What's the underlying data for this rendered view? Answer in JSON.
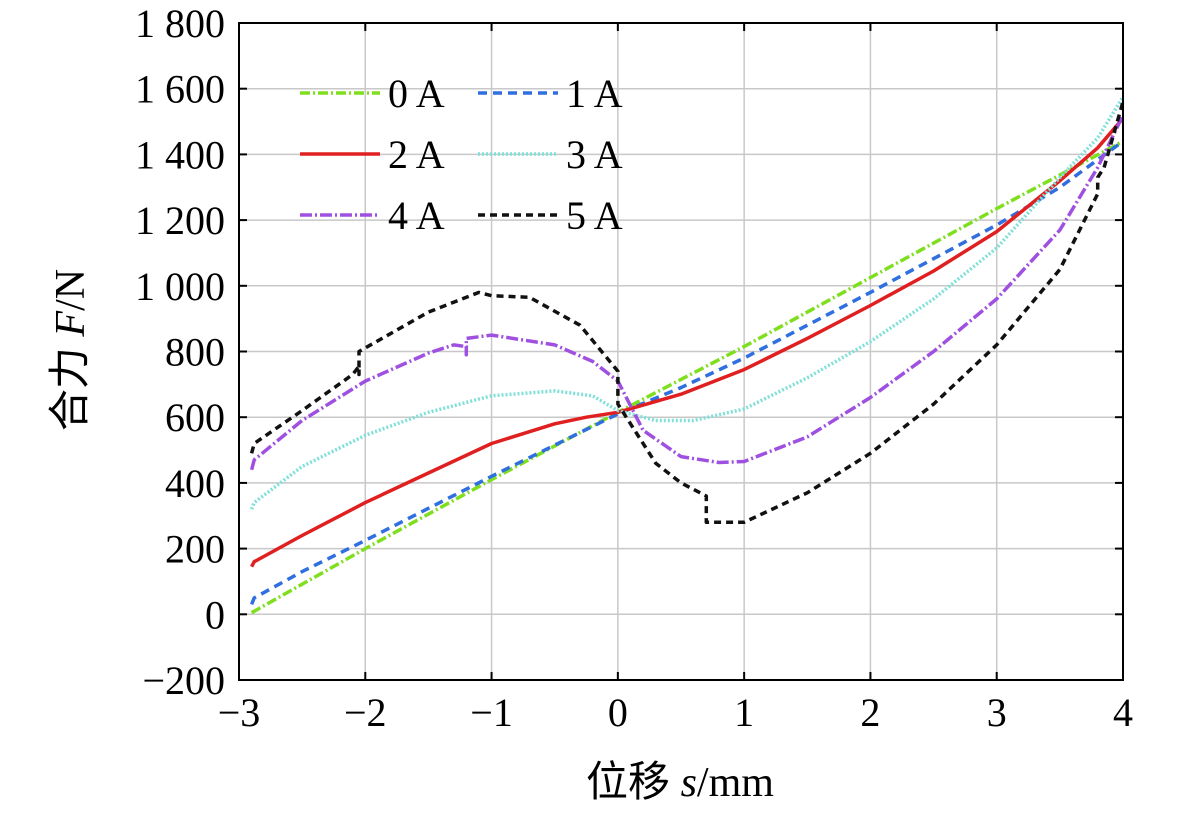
{
  "chart_data": {
    "type": "line",
    "title": "",
    "xlabel": {
      "prefix": "位移 ",
      "var": "s",
      "unit": "/mm"
    },
    "ylabel": {
      "prefix": "合力 ",
      "var": "F",
      "unit": "/N"
    },
    "xlim": [
      -3,
      4
    ],
    "ylim": [
      -200,
      1800
    ],
    "x_start": -2.9,
    "grid": true,
    "legend_position": "top-left",
    "x_ticks": [
      {
        "v": -3,
        "label": "−3"
      },
      {
        "v": -2,
        "label": "−2"
      },
      {
        "v": -1,
        "label": "−1"
      },
      {
        "v": 0,
        "label": "0"
      },
      {
        "v": 1,
        "label": "1"
      },
      {
        "v": 2,
        "label": "2"
      },
      {
        "v": 3,
        "label": "3"
      },
      {
        "v": 4,
        "label": "4"
      }
    ],
    "y_ticks": [
      {
        "v": -200,
        "label": "−200"
      },
      {
        "v": 0,
        "label": "0"
      },
      {
        "v": 200,
        "label": "200"
      },
      {
        "v": 400,
        "label": "400"
      },
      {
        "v": 600,
        "label": "600"
      },
      {
        "v": 800,
        "label": "800"
      },
      {
        "v": 1000,
        "label": "1 000"
      },
      {
        "v": 1200,
        "label": "1 200"
      },
      {
        "v": 1400,
        "label": "1 400"
      },
      {
        "v": 1600,
        "label": "1 600"
      },
      {
        "v": 1800,
        "label": "1 800"
      }
    ],
    "series": [
      {
        "name": "0 A",
        "color": "#7fdf1f",
        "dash": "10,3,2,3",
        "points": [
          [
            -2.9,
            5
          ],
          [
            -2,
            200
          ],
          [
            -1,
            410
          ],
          [
            0,
            615
          ],
          [
            1,
            815
          ],
          [
            2,
            1025
          ],
          [
            3,
            1235
          ],
          [
            4,
            1440
          ]
        ]
      },
      {
        "name": "1 A",
        "color": "#2f6fe0",
        "dash": "9,6",
        "points": [
          [
            -2.9,
            30
          ],
          [
            -2.88,
            50
          ],
          [
            -2.5,
            130
          ],
          [
            -2,
            225
          ],
          [
            -1,
            420
          ],
          [
            0,
            610
          ],
          [
            0.5,
            690
          ],
          [
            1,
            780
          ],
          [
            2,
            980
          ],
          [
            3,
            1185
          ],
          [
            3.5,
            1300
          ],
          [
            4,
            1440
          ]
        ]
      },
      {
        "name": "2 A",
        "color": "#e02020",
        "dash": "",
        "points": [
          [
            -2.9,
            145
          ],
          [
            -2.88,
            160
          ],
          [
            -2.5,
            240
          ],
          [
            -2,
            340
          ],
          [
            -1.5,
            430
          ],
          [
            -1,
            520
          ],
          [
            -0.5,
            580
          ],
          [
            -0.25,
            600
          ],
          [
            0,
            615
          ],
          [
            0.5,
            670
          ],
          [
            1,
            745
          ],
          [
            1.5,
            840
          ],
          [
            2,
            940
          ],
          [
            2.5,
            1045
          ],
          [
            3,
            1165
          ],
          [
            3.5,
            1320
          ],
          [
            3.8,
            1420
          ],
          [
            4,
            1510
          ]
        ]
      },
      {
        "name": "3 A",
        "color": "#7fe0d8",
        "dash": "2,2",
        "points": [
          [
            -2.9,
            320
          ],
          [
            -2.88,
            340
          ],
          [
            -2.5,
            450
          ],
          [
            -2,
            545
          ],
          [
            -1.5,
            615
          ],
          [
            -1,
            665
          ],
          [
            -0.5,
            680
          ],
          [
            -0.2,
            665
          ],
          [
            0,
            620
          ],
          [
            0.3,
            590
          ],
          [
            0.6,
            590
          ],
          [
            1,
            625
          ],
          [
            1.5,
            720
          ],
          [
            2,
            830
          ],
          [
            2.5,
            960
          ],
          [
            3,
            1115
          ],
          [
            3.5,
            1330
          ],
          [
            3.8,
            1450
          ],
          [
            4,
            1575
          ]
        ]
      },
      {
        "name": "4 A",
        "color": "#a050e0",
        "dash": "12,3,2,3",
        "points": [
          [
            -2.9,
            440
          ],
          [
            -2.88,
            470
          ],
          [
            -2.5,
            590
          ],
          [
            -2,
            710
          ],
          [
            -1.5,
            795
          ],
          [
            -1.3,
            820
          ],
          [
            -1.2,
            815
          ],
          [
            -1.2,
            790
          ],
          [
            -1.2,
            840
          ],
          [
            -1,
            850
          ],
          [
            -0.5,
            820
          ],
          [
            -0.2,
            770
          ],
          [
            0,
            710
          ],
          [
            0.2,
            560
          ],
          [
            0.5,
            480
          ],
          [
            0.8,
            462
          ],
          [
            1,
            465
          ],
          [
            1.5,
            540
          ],
          [
            2,
            660
          ],
          [
            2.5,
            800
          ],
          [
            3,
            960
          ],
          [
            3.5,
            1170
          ],
          [
            3.8,
            1360
          ],
          [
            4,
            1520
          ]
        ]
      },
      {
        "name": "5 A",
        "color": "#111111",
        "dash": "7,5",
        "points": [
          [
            -2.9,
            490
          ],
          [
            -2.88,
            520
          ],
          [
            -2.5,
            620
          ],
          [
            -2.1,
            730
          ],
          [
            -2.05,
            755
          ],
          [
            -2.05,
            730
          ],
          [
            -2.05,
            800
          ],
          [
            -1.5,
            920
          ],
          [
            -1.1,
            980
          ],
          [
            -1,
            970
          ],
          [
            -0.7,
            965
          ],
          [
            -0.3,
            880
          ],
          [
            0,
            740
          ],
          [
            0,
            690
          ],
          [
            0,
            640
          ],
          [
            0.3,
            460
          ],
          [
            0.5,
            400
          ],
          [
            0.7,
            360
          ],
          [
            0.7,
            280
          ],
          [
            1,
            280
          ],
          [
            1.5,
            370
          ],
          [
            2,
            490
          ],
          [
            2.5,
            640
          ],
          [
            3,
            820
          ],
          [
            3.5,
            1050
          ],
          [
            3.8,
            1280
          ],
          [
            3.8,
            1330
          ],
          [
            3.85,
            1360
          ],
          [
            4,
            1560
          ]
        ]
      }
    ]
  }
}
